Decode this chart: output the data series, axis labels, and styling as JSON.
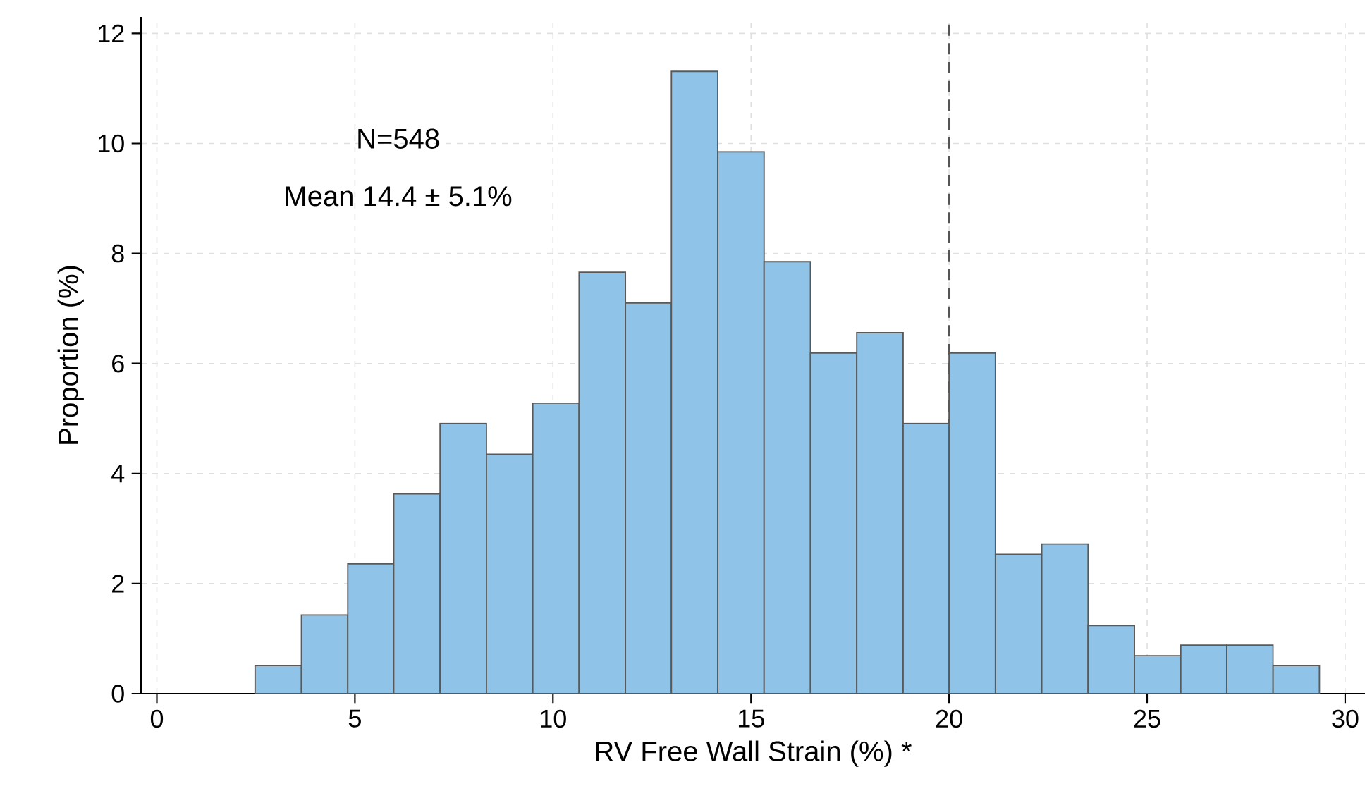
{
  "chart_data": {
    "type": "histogram",
    "xlabel": "RV Free Wall Strain (%) *",
    "ylabel": "Proportion (%)",
    "bins": [
      2.48,
      3.65,
      4.82,
      5.98,
      7.15,
      8.32,
      9.49,
      10.66,
      11.83,
      12.99,
      14.16,
      15.33,
      16.5,
      17.67,
      18.84,
      20.0,
      21.17,
      22.34,
      23.51,
      24.68,
      25.85,
      27.01,
      28.18,
      29.35
    ],
    "values": [
      0.51,
      1.43,
      2.36,
      3.63,
      4.91,
      4.35,
      5.28,
      7.66,
      7.1,
      11.31,
      9.85,
      7.85,
      6.19,
      6.56,
      4.91,
      6.19,
      2.53,
      2.72,
      1.24,
      0.69,
      0.88,
      0.88,
      0.51
    ],
    "color": "#8fc4e8",
    "xlim": [
      -0.4,
      30.5
    ],
    "ylim": [
      0,
      12.3
    ],
    "xticks": [
      0,
      5,
      10,
      15,
      20,
      25,
      30
    ],
    "yticks": [
      0,
      2,
      4,
      6,
      8,
      10,
      12
    ],
    "grid": true,
    "ref_lines": [
      {
        "axis": "x",
        "value": 20,
        "color": "#555555",
        "line_style": "dashed"
      }
    ],
    "annotations": [
      "N=548",
      "Mean 14.4 ± 5.1%"
    ]
  }
}
